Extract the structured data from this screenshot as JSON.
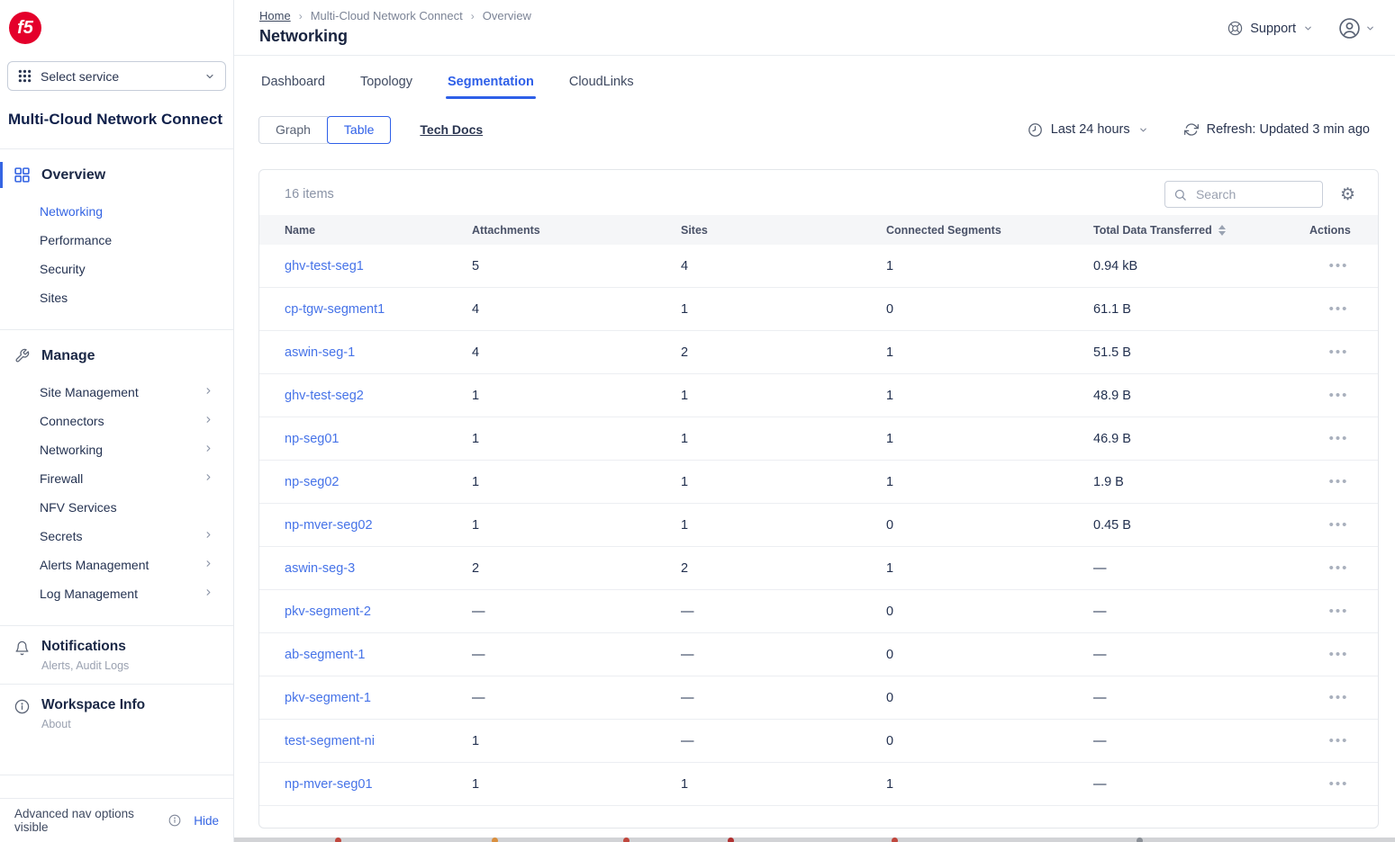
{
  "brand": {
    "logo": "f5"
  },
  "colors": {
    "accent_blue": "#3565e3",
    "f5_red": "#e4002b",
    "text_dark": "#1c2b4a",
    "text_gray": "#7c8496"
  },
  "sidebar": {
    "select_service": {
      "label": "Select service"
    },
    "workspace_title": "Multi-Cloud Network Connect",
    "overview": {
      "label": "Overview",
      "items": [
        {
          "label": "Networking",
          "active": true
        },
        {
          "label": "Performance",
          "active": false
        },
        {
          "label": "Security",
          "active": false
        },
        {
          "label": "Sites",
          "active": false
        }
      ]
    },
    "manage": {
      "label": "Manage",
      "items": [
        {
          "label": "Site Management",
          "chevron": true
        },
        {
          "label": "Connectors",
          "chevron": true
        },
        {
          "label": "Networking",
          "chevron": true
        },
        {
          "label": "Firewall",
          "chevron": true
        },
        {
          "label": "NFV Services",
          "chevron": false
        },
        {
          "label": "Secrets",
          "chevron": true
        },
        {
          "label": "Alerts Management",
          "chevron": true
        },
        {
          "label": "Log Management",
          "chevron": true
        }
      ]
    },
    "notifications": {
      "label": "Notifications",
      "sublabel": "Alerts, Audit Logs"
    },
    "workspace_info": {
      "label": "Workspace Info",
      "sublabel": "About"
    },
    "footer": {
      "text": "Advanced nav options visible",
      "link": "Hide"
    }
  },
  "header": {
    "breadcrumb": [
      "Home",
      "Multi-Cloud Network Connect",
      "Overview"
    ],
    "title": "Networking",
    "support": "Support"
  },
  "tabs": {
    "items": [
      "Dashboard",
      "Topology",
      "Segmentation",
      "CloudLinks"
    ],
    "active": "Segmentation"
  },
  "toolbar": {
    "views": [
      "Graph",
      "Table"
    ],
    "active_view": "Table",
    "tech_docs": "Tech Docs",
    "time_range": "Last 24 hours",
    "refresh": "Refresh: Updated 3 min ago"
  },
  "table": {
    "count": "16 items",
    "search_placeholder": "Search",
    "columns": [
      "Name",
      "Attachments",
      "Sites",
      "Connected Segments",
      "Total Data Transferred",
      "Actions"
    ],
    "sort_column": "Total Data Transferred",
    "rows": [
      {
        "name": "ghv-test-seg1",
        "attachments": "5",
        "sites": "4",
        "connected_segments": "1",
        "total_data": "0.94 kB"
      },
      {
        "name": "cp-tgw-segment1",
        "attachments": "4",
        "sites": "1",
        "connected_segments": "0",
        "total_data": "61.1 B"
      },
      {
        "name": "aswin-seg-1",
        "attachments": "4",
        "sites": "2",
        "connected_segments": "1",
        "total_data": "51.5 B"
      },
      {
        "name": "ghv-test-seg2",
        "attachments": "1",
        "sites": "1",
        "connected_segments": "1",
        "total_data": "48.9 B"
      },
      {
        "name": "np-seg01",
        "attachments": "1",
        "sites": "1",
        "connected_segments": "1",
        "total_data": "46.9 B"
      },
      {
        "name": "np-seg02",
        "attachments": "1",
        "sites": "1",
        "connected_segments": "1",
        "total_data": "1.9 B"
      },
      {
        "name": "np-mver-seg02",
        "attachments": "1",
        "sites": "1",
        "connected_segments": "0",
        "total_data": "0.45 B"
      },
      {
        "name": "aswin-seg-3",
        "attachments": "2",
        "sites": "2",
        "connected_segments": "1",
        "total_data": "—"
      },
      {
        "name": "pkv-segment-2",
        "attachments": "—",
        "sites": "—",
        "connected_segments": "0",
        "total_data": "—"
      },
      {
        "name": "ab-segment-1",
        "attachments": "—",
        "sites": "—",
        "connected_segments": "0",
        "total_data": "—"
      },
      {
        "name": "pkv-segment-1",
        "attachments": "—",
        "sites": "—",
        "connected_segments": "0",
        "total_data": "—"
      },
      {
        "name": "test-segment-ni",
        "attachments": "1",
        "sites": "—",
        "connected_segments": "0",
        "total_data": "—"
      },
      {
        "name": "np-mver-seg01",
        "attachments": "1",
        "sites": "1",
        "connected_segments": "1",
        "total_data": "—"
      }
    ]
  }
}
